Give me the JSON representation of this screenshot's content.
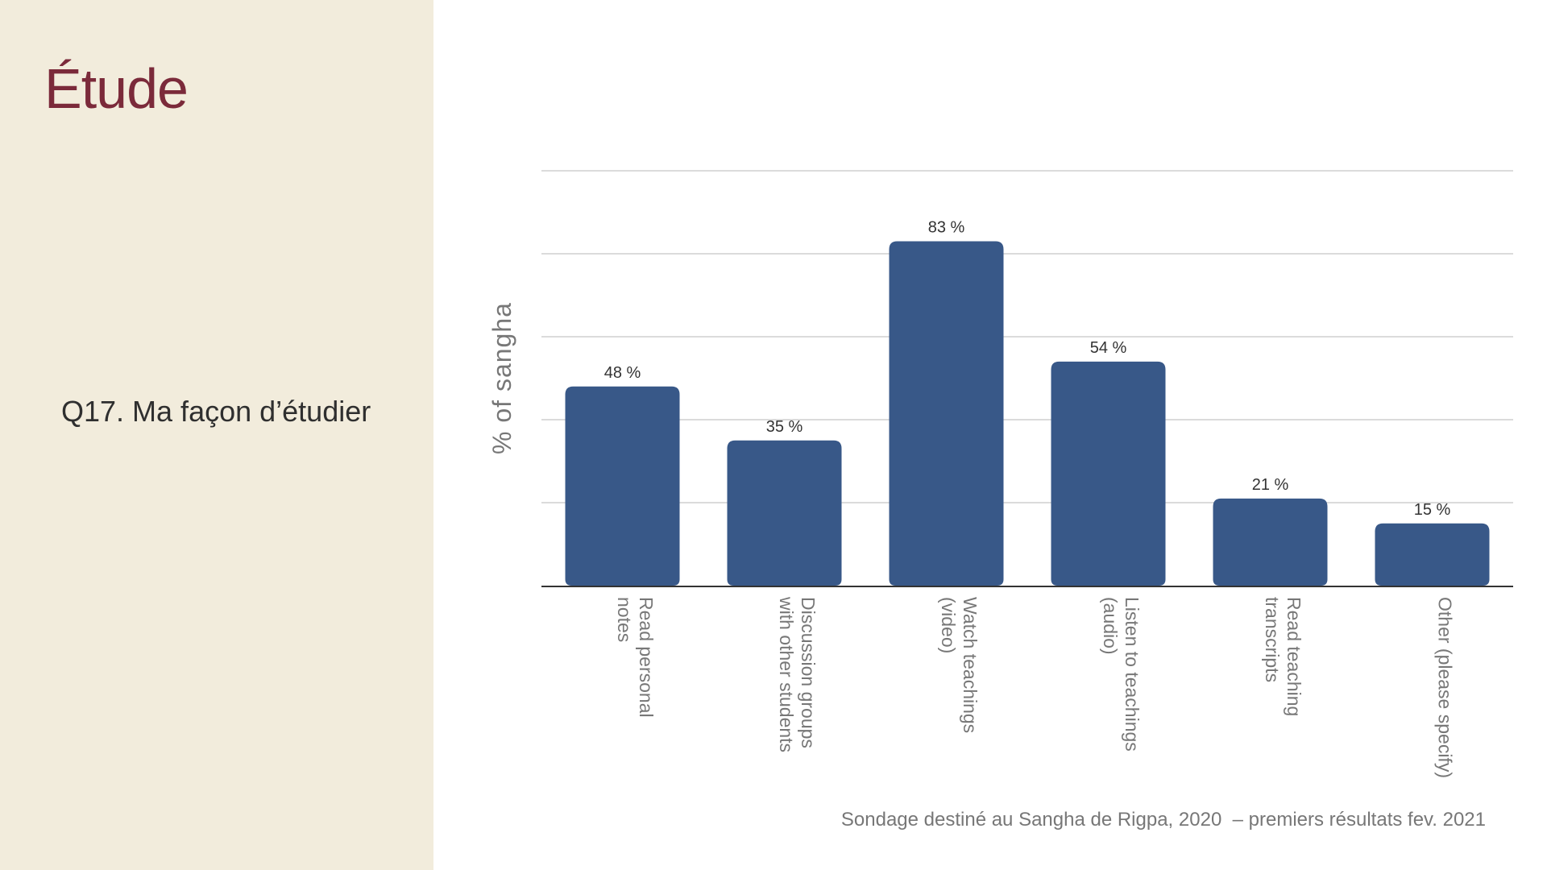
{
  "slide": {
    "title": "Étude",
    "question": "Q17. Ma façon d’étudier",
    "source": "Sondage destiné au Sangha de Rigpa, 2020  – premiers résultats fev. 2021"
  },
  "colors": {
    "bar": "#385888",
    "sidebar_bg": "#f2ecdc",
    "title": "#7b2a3a",
    "gridline": "#cfcfcf",
    "axis_label": "#777777"
  },
  "chart_data": {
    "type": "bar",
    "ylabel": "% of sangha",
    "xlabel": "",
    "ylim": [
      0,
      100
    ],
    "grid": true,
    "categories": [
      [
        "Read personal",
        "notes"
      ],
      [
        "Discussion groups",
        "with other students"
      ],
      [
        "Watch teachings",
        "(video)"
      ],
      [
        "Listen to teachings",
        "(audio)"
      ],
      [
        "Read teaching",
        "transcripts"
      ],
      [
        "Other (please specify)"
      ]
    ],
    "values": [
      48,
      35,
      83,
      54,
      21,
      15
    ],
    "data_labels": [
      "48 %",
      "35 %",
      "83 %",
      "54 %",
      "21 %",
      "15 %"
    ]
  }
}
